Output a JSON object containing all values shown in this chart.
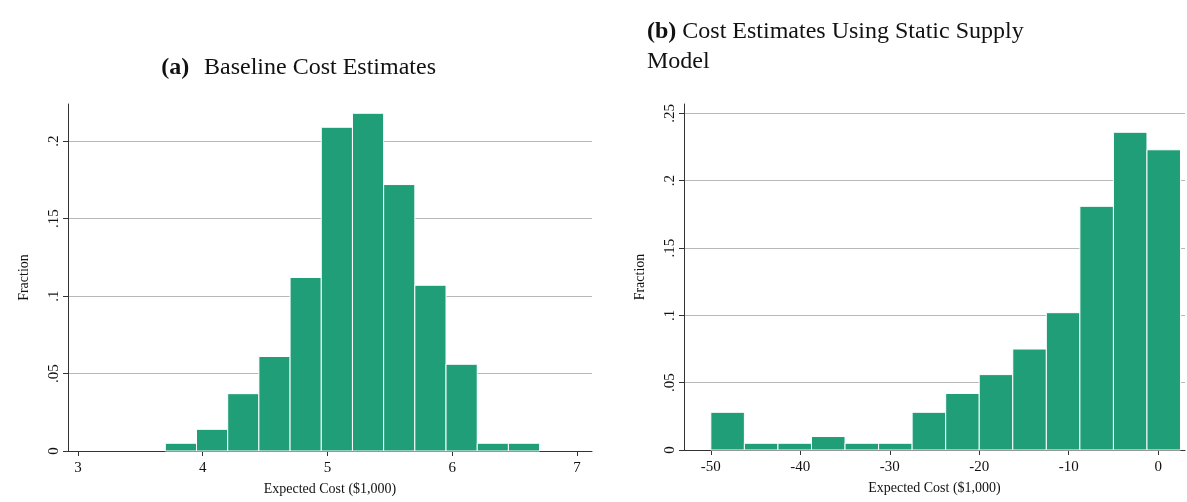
{
  "chart_data": [
    {
      "type": "histogram",
      "title": "(a) Baseline Cost Estimates",
      "xlabel": "Expected Cost ($1,000)",
      "ylabel": "Fraction",
      "color": "#1f9e77",
      "bins": [
        3.7,
        3.95,
        4.2,
        4.45,
        4.7,
        4.95,
        5.2,
        5.45,
        5.7,
        5.95,
        6.2,
        6.45,
        6.7
      ],
      "values": [
        0.005,
        0.014,
        0.037,
        0.061,
        0.112,
        0.209,
        0.218,
        0.172,
        0.107,
        0.056,
        0.005,
        0.005
      ],
      "xlim": [
        2.92,
        7.12
      ],
      "xticks": [
        3,
        4,
        5,
        6,
        7
      ],
      "ylim": [
        0,
        0.224
      ],
      "yticks": [
        {
          "value": 0,
          "label": "0"
        },
        {
          "value": 0.05,
          "label": ".05"
        },
        {
          "value": 0.1,
          "label": ".1"
        },
        {
          "value": 0.15,
          "label": ".15"
        },
        {
          "value": 0.2,
          "label": ".2"
        }
      ],
      "grid": "y"
    },
    {
      "type": "histogram",
      "title": "(b) Cost Estimates Using Static Supply Model",
      "xlabel": "Expected Cost ($1,000)",
      "ylabel": "Fraction",
      "color": "#1f9e77",
      "bins": [
        -50,
        -46.25,
        -42.5,
        -38.75,
        -35,
        -31.25,
        -27.5,
        -23.75,
        -20,
        -16.25,
        -12.5,
        -8.75,
        -5,
        -1.25,
        2.5
      ],
      "values": [
        0.028,
        0.005,
        0.005,
        0.01,
        0.005,
        0.005,
        0.028,
        0.042,
        0.056,
        0.075,
        0.102,
        0.181,
        0.236,
        0.223
      ],
      "xlim": [
        -53,
        3
      ],
      "xticks": [
        -50,
        -40,
        -30,
        -20,
        -10,
        0
      ],
      "ylim": [
        0,
        0.257
      ],
      "yticks": [
        {
          "value": 0,
          "label": "0"
        },
        {
          "value": 0.05,
          "label": ".05"
        },
        {
          "value": 0.1,
          "label": ".1"
        },
        {
          "value": 0.15,
          "label": ".15"
        },
        {
          "value": 0.2,
          "label": ".2"
        },
        {
          "value": 0.25,
          "label": ".25"
        }
      ],
      "grid": "y"
    }
  ]
}
